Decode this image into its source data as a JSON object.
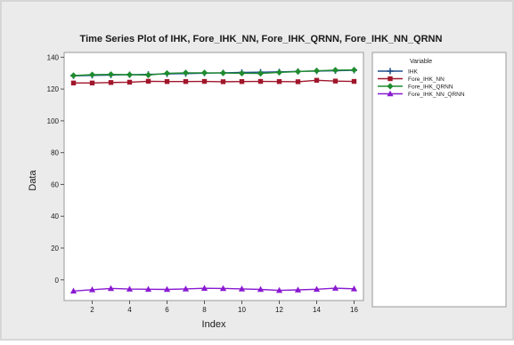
{
  "chart_data": {
    "type": "line",
    "title": "Time Series Plot of IHK, Fore_IHK_NN, Fore_IHK_QRNN, Fore_IHK_NN_QRNN",
    "xlabel": "Index",
    "ylabel": "Data",
    "xlim": [
      0.5,
      16.5
    ],
    "ylim": [
      -13,
      143
    ],
    "xticks": [
      2,
      4,
      6,
      8,
      10,
      12,
      14,
      16
    ],
    "yticks": [
      0,
      20,
      40,
      60,
      80,
      100,
      120,
      140
    ],
    "x": [
      1,
      2,
      3,
      4,
      5,
      6,
      7,
      8,
      9,
      10,
      11,
      12,
      13,
      14,
      15,
      16
    ],
    "grid": false,
    "legend_title": "Variable",
    "legend_position": "top-right",
    "series": [
      {
        "name": "IHK",
        "color": "#1f4e8c",
        "marker": "plus",
        "values": [
          128.3,
          128.6,
          128.8,
          129.0,
          129.2,
          129.5,
          129.7,
          130.0,
          130.2,
          130.4,
          130.6,
          130.8,
          131.1,
          131.3,
          131.5,
          131.8
        ]
      },
      {
        "name": "Fore_IHK_NN",
        "color": "#a0162b",
        "marker": "square",
        "values": [
          123.8,
          123.8,
          124.1,
          124.3,
          124.9,
          124.7,
          124.7,
          124.8,
          124.6,
          124.7,
          124.8,
          124.7,
          124.6,
          125.5,
          125.0,
          124.8
        ]
      },
      {
        "name": "Fore_IHK_QRNN",
        "color": "#1e8c2e",
        "marker": "diamond",
        "values": [
          128.5,
          129.0,
          129.2,
          129.0,
          128.8,
          129.9,
          130.2,
          130.2,
          130.1,
          129.9,
          129.8,
          130.5,
          131.0,
          131.5,
          131.9,
          132.0
        ]
      },
      {
        "name": "Fore_IHK_NN_QRNN",
        "color": "#8a1ad1",
        "marker": "triangle",
        "values": [
          -7.0,
          -6.2,
          -5.4,
          -5.8,
          -5.9,
          -6.0,
          -5.7,
          -5.3,
          -5.4,
          -5.7,
          -6.0,
          -6.6,
          -6.3,
          -5.9,
          -5.2,
          -5.6
        ]
      }
    ]
  }
}
